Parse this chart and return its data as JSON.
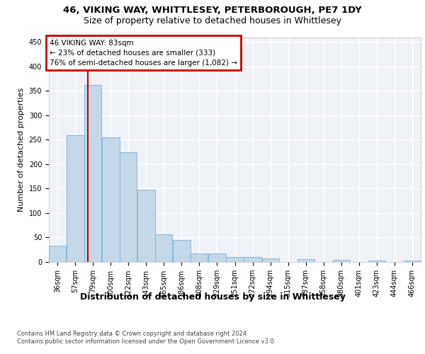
{
  "title1": "46, VIKING WAY, WHITTLESEY, PETERBOROUGH, PE7 1DY",
  "title2": "Size of property relative to detached houses in Whittlesey",
  "xlabel": "Distribution of detached houses by size in Whittlesey",
  "ylabel": "Number of detached properties",
  "footnote": "Contains HM Land Registry data © Crown copyright and database right 2024.\nContains public sector information licensed under the Open Government Licence v3.0.",
  "bin_labels": [
    "36sqm",
    "57sqm",
    "79sqm",
    "100sqm",
    "122sqm",
    "143sqm",
    "165sqm",
    "186sqm",
    "208sqm",
    "229sqm",
    "251sqm",
    "272sqm",
    "294sqm",
    "315sqm",
    "337sqm",
    "358sqm",
    "380sqm",
    "401sqm",
    "423sqm",
    "444sqm",
    "466sqm"
  ],
  "bin_lefts": [
    36,
    57,
    79,
    100,
    122,
    143,
    165,
    186,
    208,
    229,
    251,
    272,
    294,
    315,
    337,
    358,
    380,
    401,
    423,
    444,
    466
  ],
  "bar_widths": [
    21,
    22,
    21,
    22,
    21,
    22,
    21,
    22,
    21,
    22,
    21,
    22,
    21,
    22,
    21,
    22,
    21,
    22,
    21,
    22,
    21
  ],
  "bar_heights": [
    33,
    260,
    362,
    255,
    225,
    148,
    57,
    45,
    18,
    18,
    10,
    10,
    7,
    0,
    6,
    0,
    5,
    0,
    3,
    0,
    3
  ],
  "bar_color": "#c5d8e8",
  "bar_edge_color": "#7bafd4",
  "property_size": 83,
  "vline_color": "#cc0000",
  "annotation_line1": "46 VIKING WAY: 83sqm",
  "annotation_line2": "← 23% of detached houses are smaller (333)",
  "annotation_line3": "76% of semi-detached houses are larger (1,082) →",
  "annotation_box_color": "#cc0000",
  "bg_color": "#eef2f7",
  "grid_color": "#ffffff",
  "ylim_max": 460,
  "yticks": [
    0,
    50,
    100,
    150,
    200,
    250,
    300,
    350,
    400,
    450
  ],
  "title1_fontsize": 9.5,
  "title2_fontsize": 9,
  "xlabel_fontsize": 9,
  "ylabel_fontsize": 8,
  "tick_fontsize": 7,
  "annot_fontsize": 7.5
}
